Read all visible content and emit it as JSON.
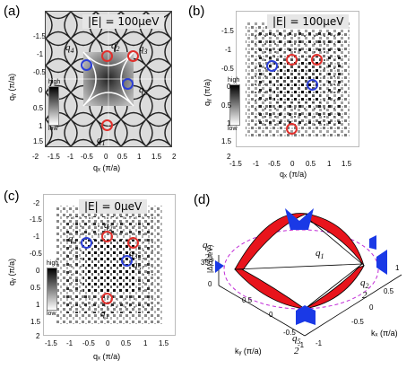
{
  "panels": {
    "a": {
      "letter": "(a)",
      "energy": "|E| = 100μeV",
      "x_ticks": [
        "-2",
        "-1.5",
        "-1",
        "-0.5",
        "0",
        "0.5",
        "1",
        "1.5",
        "2"
      ],
      "y_ticks": [
        "-1.5",
        "-1",
        "-0.5",
        "0",
        "0.5",
        "1",
        "1.5"
      ],
      "xlabel": "qₓ (π/a)",
      "ylabel": "qᵧ (π/a)",
      "cbar_high": "high",
      "cbar_low": "low"
    },
    "b": {
      "letter": "(b)",
      "energy": "|E| = 100μeV",
      "x_ticks": [
        "-1.5",
        "-1",
        "-0.5",
        "0",
        "0.5",
        "1",
        "1.5"
      ],
      "y_ticks": [
        "-1.5",
        "-1",
        "-0.5",
        "0",
        "0.5",
        "1",
        "1.5",
        "2"
      ],
      "xlabel": "qₓ (π/a)",
      "ylabel": "qᵧ (π/a)",
      "cbar_high": "high",
      "cbar_low": "low"
    },
    "c": {
      "letter": "(c)",
      "energy": "|E| = 0μeV",
      "x_ticks": [
        "-1.5",
        "-1",
        "-0.5",
        "0",
        "0.5",
        "1",
        "1.5"
      ],
      "y_ticks": [
        "-2",
        "-1.5",
        "-1",
        "-0.5",
        "0",
        "0.5",
        "1",
        "1.5",
        "2"
      ],
      "xlabel": "qₓ (π/a)",
      "ylabel": "qᵧ (π/a)",
      "cbar_high": "high",
      "cbar_low": "low"
    },
    "d": {
      "letter": "(d)",
      "zlabel": "|Δ| (μeV)",
      "z_ticks": [
        "350",
        "0"
      ],
      "kx_label": "kₓ (π/a)",
      "ky_label": "kᵧ (π/a)",
      "kx_ticks": [
        "1",
        "0.5",
        "0",
        "-0.5",
        "-1"
      ],
      "ky_ticks": [
        "0.5",
        "0",
        "-0.5",
        "-1"
      ]
    }
  },
  "q_labels": {
    "q1": "q",
    "q1_sub": "1",
    "q2": "q",
    "q2_sub": "2",
    "q3": "q",
    "q3_sub": "3",
    "q4": "q",
    "q4_sub": "4",
    "q5": "q",
    "q5_sub": "5",
    "q3_half": "q",
    "q2_half": "q",
    "q5_half": "q",
    "half_den": "2"
  },
  "colors": {
    "red_circle": "#e0302c",
    "blue_circle": "#2c3fd6",
    "red_fill": "#e8141c",
    "blue_fill": "#1a39e6",
    "magenta_dash": "#c02ad6"
  }
}
